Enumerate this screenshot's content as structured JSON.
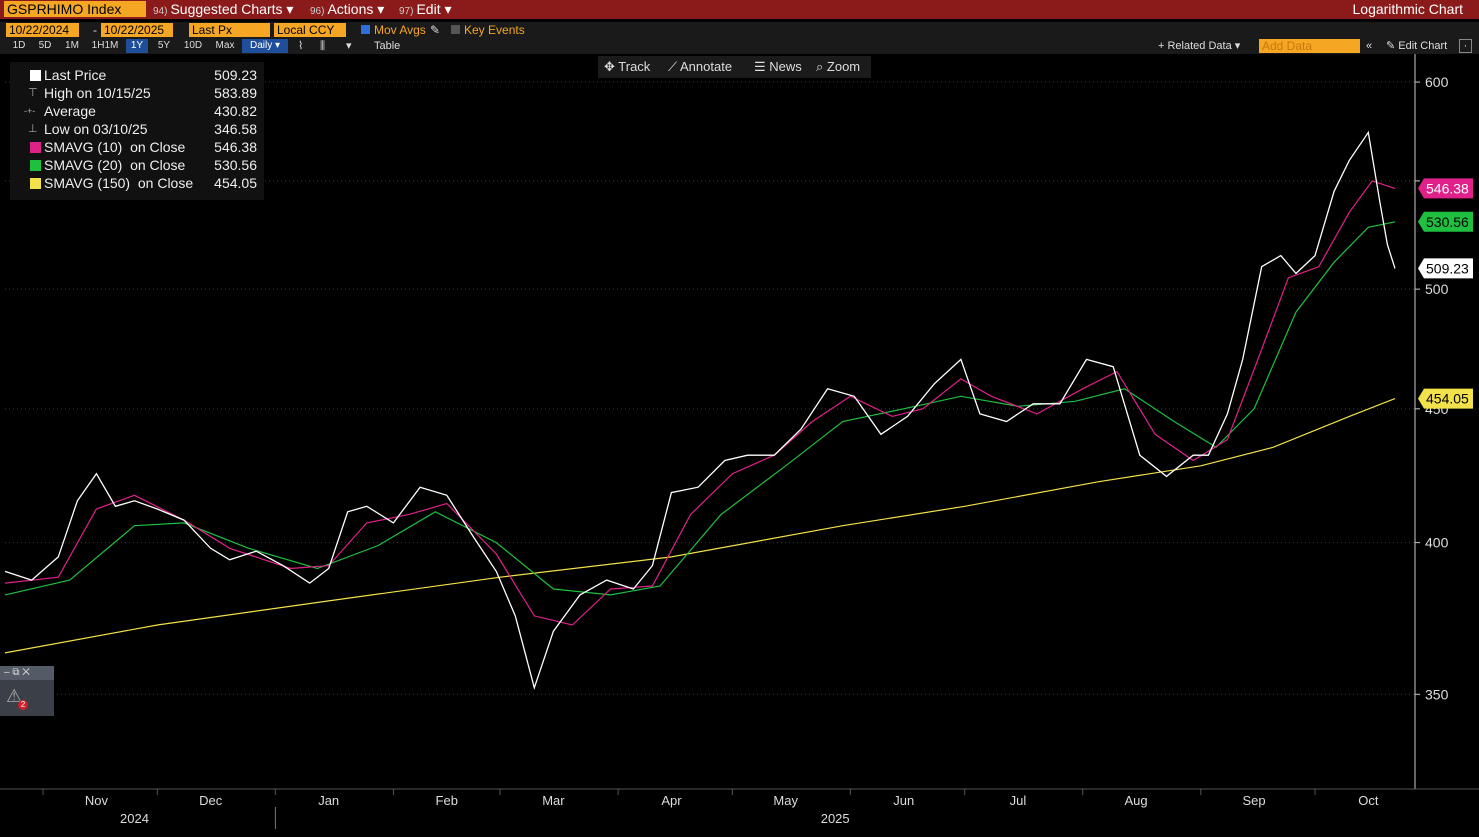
{
  "header": {
    "ticker": "GSPRHIMO Index",
    "menus": [
      {
        "num": "94)",
        "label": "Suggested Charts ▾"
      },
      {
        "num": "96)",
        "label": "Actions ▾"
      },
      {
        "num": "97)",
        "label": "Edit ▾"
      }
    ],
    "right_title": "Logarithmic Chart"
  },
  "controls": {
    "start_date": "10/22/2024",
    "dash": "-",
    "end_date": "10/22/2025",
    "field": "Last Px",
    "currency": "Local CCY",
    "mov_avgs": "Mov Avgs",
    "key_events": "Key Events",
    "ranges": [
      "1D",
      "5D",
      "1M",
      "1H1M",
      "1Y",
      "5Y",
      "10D",
      "Max"
    ],
    "selected_range": "1Y",
    "frequency": "Daily ▾",
    "table": "Table",
    "related_data": "+ Related Data ▾",
    "add_data_placeholder": "Add Data",
    "edit_chart": "Edit Chart"
  },
  "toolbar": {
    "track": "Track",
    "annotate": "Annotate",
    "news": "News",
    "zoom": "Zoom"
  },
  "legend": [
    {
      "name": "Last Price",
      "value": "509.23",
      "color": "#ffffff",
      "glyph": ""
    },
    {
      "name": "High on 10/15/25",
      "value": "583.89",
      "color": "",
      "glyph": "⊤"
    },
    {
      "name": "Average",
      "value": "430.82",
      "color": "",
      "glyph": "-+-"
    },
    {
      "name": "Low on 03/10/25",
      "value": "346.58",
      "color": "",
      "glyph": "⊥"
    },
    {
      "name": "SMAVG (10)  on Close",
      "value": "546.38",
      "color": "#e0218a",
      "glyph": ""
    },
    {
      "name": "SMAVG (20)  on Close",
      "value": "530.56",
      "color": "#1fbf3f",
      "glyph": ""
    },
    {
      "name": "SMAVG (150)  on Close",
      "value": "454.05",
      "color": "#f2e14a",
      "glyph": ""
    }
  ],
  "colors": {
    "price": "#ffffff",
    "sma10": "#e0218a",
    "sma20": "#1fbf3f",
    "sma150": "#f2e14a",
    "header_bg": "#8b1a1a",
    "field_bg": "#f5a623"
  },
  "chart_data": {
    "type": "line",
    "scale": "log",
    "ylim": [
      322,
      615
    ],
    "yticks": [
      350,
      400,
      450,
      500,
      550,
      600
    ],
    "ytick_labels": [
      "350",
      "400",
      "450",
      "500",
      "",
      "600"
    ],
    "x_start": "2024-10-22",
    "x_end": "2025-10-22",
    "months": [
      {
        "label": "Nov",
        "date": "2024-11-15"
      },
      {
        "label": "Dec",
        "date": "2024-12-15"
      },
      {
        "label": "Jan",
        "date": "2025-01-15"
      },
      {
        "label": "Feb",
        "date": "2025-02-15"
      },
      {
        "label": "Mar",
        "date": "2025-03-15"
      },
      {
        "label": "Apr",
        "date": "2025-04-15"
      },
      {
        "label": "May",
        "date": "2025-05-15"
      },
      {
        "label": "Jun",
        "date": "2025-06-15"
      },
      {
        "label": "Jul",
        "date": "2025-07-15"
      },
      {
        "label": "Aug",
        "date": "2025-08-15"
      },
      {
        "label": "Sep",
        "date": "2025-09-15"
      },
      {
        "label": "Oct",
        "date": "2025-10-15"
      }
    ],
    "years": [
      {
        "label": "2024",
        "date": "2024-11-25"
      },
      {
        "label": "2025",
        "date": "2025-05-28"
      }
    ],
    "price_series": {
      "name": "Last Price",
      "points": [
        [
          "2024-10-22",
          390
        ],
        [
          "2024-10-29",
          387
        ],
        [
          "2024-11-05",
          395
        ],
        [
          "2024-11-10",
          415
        ],
        [
          "2024-11-15",
          425
        ],
        [
          "2024-11-20",
          413
        ],
        [
          "2024-11-25",
          415
        ],
        [
          "2024-12-01",
          412
        ],
        [
          "2024-12-08",
          408
        ],
        [
          "2024-12-15",
          398
        ],
        [
          "2024-12-20",
          394
        ],
        [
          "2024-12-27",
          397
        ],
        [
          "2025-01-03",
          392
        ],
        [
          "2025-01-10",
          386
        ],
        [
          "2025-01-15",
          391
        ],
        [
          "2025-01-20",
          411
        ],
        [
          "2025-01-25",
          413
        ],
        [
          "2025-02-01",
          407
        ],
        [
          "2025-02-08",
          420
        ],
        [
          "2025-02-15",
          417
        ],
        [
          "2025-02-22",
          402
        ],
        [
          "2025-02-28",
          390
        ],
        [
          "2025-03-05",
          375
        ],
        [
          "2025-03-10",
          352
        ],
        [
          "2025-03-15",
          370
        ],
        [
          "2025-03-22",
          382
        ],
        [
          "2025-03-29",
          387
        ],
        [
          "2025-04-05",
          384
        ],
        [
          "2025-04-10",
          392
        ],
        [
          "2025-04-15",
          418
        ],
        [
          "2025-04-22",
          420
        ],
        [
          "2025-04-29",
          430
        ],
        [
          "2025-05-05",
          432
        ],
        [
          "2025-05-12",
          432
        ],
        [
          "2025-05-19",
          442
        ],
        [
          "2025-05-26",
          458
        ],
        [
          "2025-06-02",
          455
        ],
        [
          "2025-06-09",
          440
        ],
        [
          "2025-06-16",
          447
        ],
        [
          "2025-06-23",
          460
        ],
        [
          "2025-06-30",
          470
        ],
        [
          "2025-07-05",
          448
        ],
        [
          "2025-07-12",
          445
        ],
        [
          "2025-07-19",
          452
        ],
        [
          "2025-07-26",
          452
        ],
        [
          "2025-08-02",
          470
        ],
        [
          "2025-08-09",
          467
        ],
        [
          "2025-08-16",
          432
        ],
        [
          "2025-08-23",
          424
        ],
        [
          "2025-08-30",
          432
        ],
        [
          "2025-09-03",
          432
        ],
        [
          "2025-09-08",
          448
        ],
        [
          "2025-09-12",
          470
        ],
        [
          "2025-09-17",
          510
        ],
        [
          "2025-09-22",
          515
        ],
        [
          "2025-09-26",
          507
        ],
        [
          "2025-10-01",
          515
        ],
        [
          "2025-10-06",
          545
        ],
        [
          "2025-10-10",
          560
        ],
        [
          "2025-10-15",
          574
        ],
        [
          "2025-10-18",
          540
        ],
        [
          "2025-10-20",
          520
        ],
        [
          "2025-10-22",
          509.23
        ]
      ]
    },
    "sma10_series": {
      "name": "SMAVG (10)  on Close",
      "points": [
        [
          "2024-10-22",
          386
        ],
        [
          "2024-11-05",
          388
        ],
        [
          "2024-11-15",
          412
        ],
        [
          "2024-11-25",
          417
        ],
        [
          "2024-12-08",
          408
        ],
        [
          "2024-12-20",
          398
        ],
        [
          "2025-01-05",
          391
        ],
        [
          "2025-01-15",
          392
        ],
        [
          "2025-01-25",
          407
        ],
        [
          "2025-02-05",
          410
        ],
        [
          "2025-02-15",
          414
        ],
        [
          "2025-02-28",
          396
        ],
        [
          "2025-03-10",
          375
        ],
        [
          "2025-03-20",
          372
        ],
        [
          "2025-03-30",
          384
        ],
        [
          "2025-04-10",
          385
        ],
        [
          "2025-04-20",
          410
        ],
        [
          "2025-05-01",
          425
        ],
        [
          "2025-05-12",
          432
        ],
        [
          "2025-05-22",
          445
        ],
        [
          "2025-06-01",
          455
        ],
        [
          "2025-06-12",
          447
        ],
        [
          "2025-06-20",
          450
        ],
        [
          "2025-06-30",
          462
        ],
        [
          "2025-07-08",
          455
        ],
        [
          "2025-07-20",
          448
        ],
        [
          "2025-08-01",
          458
        ],
        [
          "2025-08-10",
          465
        ],
        [
          "2025-08-20",
          440
        ],
        [
          "2025-08-30",
          430
        ],
        [
          "2025-09-08",
          438
        ],
        [
          "2025-09-16",
          470
        ],
        [
          "2025-09-24",
          505
        ],
        [
          "2025-10-02",
          510
        ],
        [
          "2025-10-10",
          535
        ],
        [
          "2025-10-16",
          550
        ],
        [
          "2025-10-22",
          546.38
        ]
      ]
    },
    "sma20_series": {
      "name": "SMAVG (20)  on Close",
      "points": [
        [
          "2024-10-22",
          382
        ],
        [
          "2024-11-08",
          387
        ],
        [
          "2024-11-25",
          406
        ],
        [
          "2024-12-08",
          407
        ],
        [
          "2024-12-25",
          398
        ],
        [
          "2025-01-12",
          391
        ],
        [
          "2025-01-28",
          399
        ],
        [
          "2025-02-12",
          411
        ],
        [
          "2025-02-28",
          400
        ],
        [
          "2025-03-15",
          384
        ],
        [
          "2025-03-30",
          382
        ],
        [
          "2025-04-12",
          385
        ],
        [
          "2025-04-28",
          410
        ],
        [
          "2025-05-15",
          428
        ],
        [
          "2025-05-30",
          445
        ],
        [
          "2025-06-15",
          450
        ],
        [
          "2025-06-30",
          455
        ],
        [
          "2025-07-15",
          451
        ],
        [
          "2025-07-30",
          453
        ],
        [
          "2025-08-12",
          458
        ],
        [
          "2025-08-25",
          445
        ],
        [
          "2025-09-05",
          435
        ],
        [
          "2025-09-15",
          450
        ],
        [
          "2025-09-26",
          490
        ],
        [
          "2025-10-06",
          512
        ],
        [
          "2025-10-15",
          528
        ],
        [
          "2025-10-22",
          530.56
        ]
      ]
    },
    "sma150_series": {
      "name": "SMAVG (150)  on Close",
      "points": [
        [
          "2024-10-22",
          363
        ],
        [
          "2024-12-01",
          372
        ],
        [
          "2025-01-15",
          380
        ],
        [
          "2025-03-01",
          388
        ],
        [
          "2025-04-15",
          395
        ],
        [
          "2025-05-30",
          406
        ],
        [
          "2025-07-01",
          413
        ],
        [
          "2025-08-05",
          422
        ],
        [
          "2025-09-01",
          428
        ],
        [
          "2025-09-20",
          435
        ],
        [
          "2025-10-10",
          447
        ],
        [
          "2025-10-22",
          454.05
        ]
      ]
    },
    "last_labels": [
      {
        "value": 546.38,
        "text": "546.38",
        "color": "#e0218a",
        "text_color": "#ffffff"
      },
      {
        "value": 530.56,
        "text": "530.56",
        "color": "#1fbf3f",
        "text_color": "#000000"
      },
      {
        "value": 509.23,
        "text": "509.23",
        "color": "#ffffff",
        "text_color": "#000000"
      },
      {
        "value": 454.05,
        "text": "454.05",
        "color": "#f2e14a",
        "text_color": "#000000"
      }
    ]
  }
}
